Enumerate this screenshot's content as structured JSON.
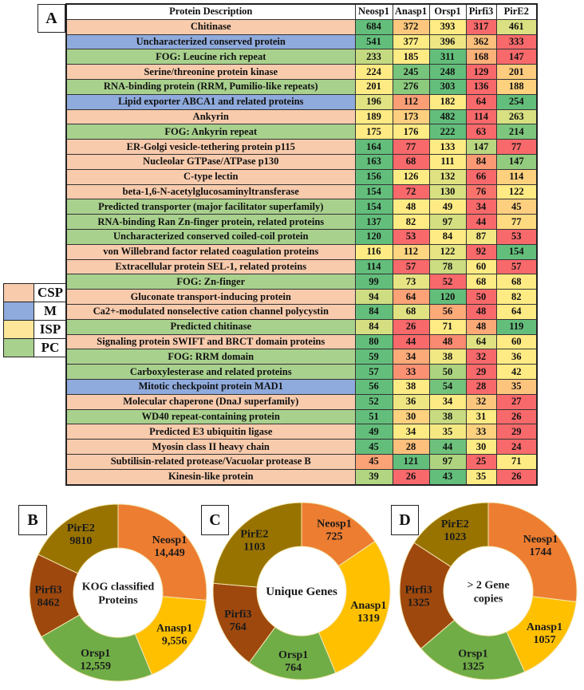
{
  "category_colors": {
    "CSP": "#f8cbad",
    "M": "#8faadc",
    "ISP": "#ffe699",
    "PC": "#a9d18e"
  },
  "scale_colors": {
    "min": "#f8696b",
    "mid": "#ffeb84",
    "max": "#63be7b"
  },
  "legend": [
    {
      "label": "CSP",
      "category": "CSP"
    },
    {
      "label": "M",
      "category": "M"
    },
    {
      "label": "ISP",
      "category": "ISP"
    },
    {
      "label": "PC",
      "category": "PC"
    }
  ],
  "chart_data": [
    {
      "panel": "A",
      "type": "heatmap",
      "header": "Protein Description",
      "columns": [
        "Neosp1",
        "Anasp1",
        "Orsp1",
        "Pirfi3",
        "PirE2"
      ],
      "rows": [
        {
          "label": "Chitinase",
          "category": "CSP",
          "values": [
            684,
            372,
            393,
            317,
            461
          ]
        },
        {
          "label": "Uncharacterized conserved protein",
          "category": "M",
          "values": [
            541,
            377,
            396,
            362,
            333
          ]
        },
        {
          "label": "FOG: Leucine rich repeat",
          "category": "PC",
          "values": [
            233,
            185,
            311,
            168,
            147
          ]
        },
        {
          "label": "Serine/threonine protein kinase",
          "category": "CSP",
          "values": [
            224,
            245,
            248,
            129,
            201
          ]
        },
        {
          "label": "RNA-binding protein (RRM, Pumilio-like repeats)",
          "category": "PC",
          "values": [
            201,
            276,
            303,
            136,
            188
          ]
        },
        {
          "label": "Lipid exporter ABCA1 and related proteins",
          "category": "M",
          "values": [
            196,
            112,
            182,
            64,
            254
          ]
        },
        {
          "label": "Ankyrin",
          "category": "CSP",
          "values": [
            189,
            173,
            482,
            114,
            263
          ]
        },
        {
          "label": "FOG: Ankyrin repeat",
          "category": "PC",
          "values": [
            175,
            176,
            222,
            63,
            214
          ]
        },
        {
          "label": "ER-Golgi vesicle-tethering protein p115",
          "category": "CSP",
          "values": [
            164,
            77,
            133,
            147,
            77
          ]
        },
        {
          "label": "Nucleolar GTPase/ATPase p130",
          "category": "CSP",
          "values": [
            163,
            68,
            111,
            84,
            147
          ]
        },
        {
          "label": "C-type lectin",
          "category": "CSP",
          "values": [
            156,
            126,
            132,
            66,
            114
          ]
        },
        {
          "label": "beta-1,6-N-acetylglucosaminyltransferase",
          "category": "CSP",
          "values": [
            154,
            72,
            130,
            76,
            122
          ]
        },
        {
          "label": "Predicted transporter (major facilitator superfamily)",
          "category": "PC",
          "values": [
            154,
            48,
            49,
            34,
            45
          ]
        },
        {
          "label": "RNA-binding Ran Zn-finger protein, related proteins",
          "category": "PC",
          "values": [
            137,
            82,
            97,
            44,
            77
          ]
        },
        {
          "label": "Uncharacterized conserved coiled-coil protein",
          "category": "PC",
          "values": [
            120,
            53,
            84,
            87,
            53
          ]
        },
        {
          "label": "von Willebrand factor related coagulation proteins",
          "category": "CSP",
          "values": [
            116,
            112,
            122,
            92,
            154
          ]
        },
        {
          "label": "Extracellular protein SEL-1, related proteins",
          "category": "CSP",
          "values": [
            114,
            57,
            78,
            60,
            57
          ]
        },
        {
          "label": "FOG: Zn-finger",
          "category": "PC",
          "values": [
            99,
            73,
            52,
            68,
            68
          ]
        },
        {
          "label": "Gluconate transport-inducing protein",
          "category": "CSP",
          "values": [
            94,
            64,
            120,
            50,
            82
          ]
        },
        {
          "label": "Ca2+-modulated nonselective cation channel polycystin",
          "category": "CSP",
          "values": [
            84,
            68,
            56,
            48,
            64
          ]
        },
        {
          "label": "Predicted chitinase",
          "category": "PC",
          "values": [
            84,
            26,
            71,
            48,
            119
          ]
        },
        {
          "label": "Signaling protein SWIFT and BRCT domain proteins",
          "category": "CSP",
          "values": [
            80,
            44,
            48,
            64,
            60
          ]
        },
        {
          "label": "FOG: RRM domain",
          "category": "PC",
          "values": [
            59,
            34,
            38,
            32,
            36
          ]
        },
        {
          "label": "Carboxylesterase and related proteins",
          "category": "PC",
          "values": [
            57,
            33,
            50,
            29,
            42
          ]
        },
        {
          "label": "Mitotic checkpoint protein MAD1",
          "category": "M",
          "values": [
            56,
            38,
            54,
            28,
            35
          ]
        },
        {
          "label": "Molecular chaperone (DnaJ superfamily)",
          "category": "CSP",
          "values": [
            52,
            36,
            34,
            32,
            27
          ]
        },
        {
          "label": "WD40 repeat-containing protein",
          "category": "PC",
          "values": [
            51,
            30,
            38,
            31,
            26
          ]
        },
        {
          "label": "Predicted E3 ubiquitin ligase",
          "category": "CSP",
          "values": [
            49,
            34,
            35,
            33,
            29
          ]
        },
        {
          "label": "Myosin class II heavy chain",
          "category": "CSP",
          "values": [
            45,
            28,
            44,
            30,
            24
          ]
        },
        {
          "label": "Subtilisin-related protease/Vacuolar protease B",
          "category": "CSP",
          "values": [
            45,
            121,
            97,
            25,
            71
          ]
        },
        {
          "label": "Kinesin-like protein",
          "category": "CSP",
          "values": [
            39,
            26,
            43,
            35,
            26
          ]
        }
      ]
    },
    {
      "panel": "B",
      "type": "pie",
      "donut": true,
      "center_label": [
        "KOG classified",
        "Proteins"
      ],
      "slices": [
        {
          "name": "Neosp1",
          "value": 14449,
          "label": "14,449",
          "color": "#ed7d31"
        },
        {
          "name": "Anasp1",
          "value": 9556,
          "label": "9,556",
          "color": "#ffc000"
        },
        {
          "name": "Orsp1",
          "value": 12559,
          "label": "12,559",
          "color": "#70ad47"
        },
        {
          "name": "Pirfi3",
          "value": 8462,
          "label": "8462",
          "color": "#9e480e"
        },
        {
          "name": "PirE2",
          "value": 9810,
          "label": "9810",
          "color": "#997300"
        }
      ]
    },
    {
      "panel": "C",
      "type": "pie",
      "donut": true,
      "center_label": [
        "Unique Genes"
      ],
      "slices": [
        {
          "name": "Neosp1",
          "value": 725,
          "label": "725",
          "color": "#ed7d31"
        },
        {
          "name": "Anasp1",
          "value": 1319,
          "label": "1319",
          "color": "#ffc000"
        },
        {
          "name": "Orsp1",
          "value": 764,
          "label": "764",
          "color": "#70ad47"
        },
        {
          "name": "Pirfi3",
          "value": 764,
          "label": "764",
          "color": "#9e480e"
        },
        {
          "name": "PirE2",
          "value": 1103,
          "label": "1103",
          "color": "#997300"
        }
      ]
    },
    {
      "panel": "D",
      "type": "pie",
      "donut": true,
      "center_label": [
        "> 2 Gene",
        "copies"
      ],
      "slices": [
        {
          "name": "Neosp1",
          "value": 1744,
          "label": "1744",
          "color": "#ed7d31"
        },
        {
          "name": "Anasp1",
          "value": 1057,
          "label": "1057",
          "color": "#ffc000"
        },
        {
          "name": "Orsp1",
          "value": 1325,
          "label": "1325",
          "color": "#70ad47"
        },
        {
          "name": "Pirfi3",
          "value": 1325,
          "label": "1325",
          "color": "#9e480e"
        },
        {
          "name": "PirE2",
          "value": 1023,
          "label": "1023",
          "color": "#997300"
        }
      ]
    }
  ]
}
